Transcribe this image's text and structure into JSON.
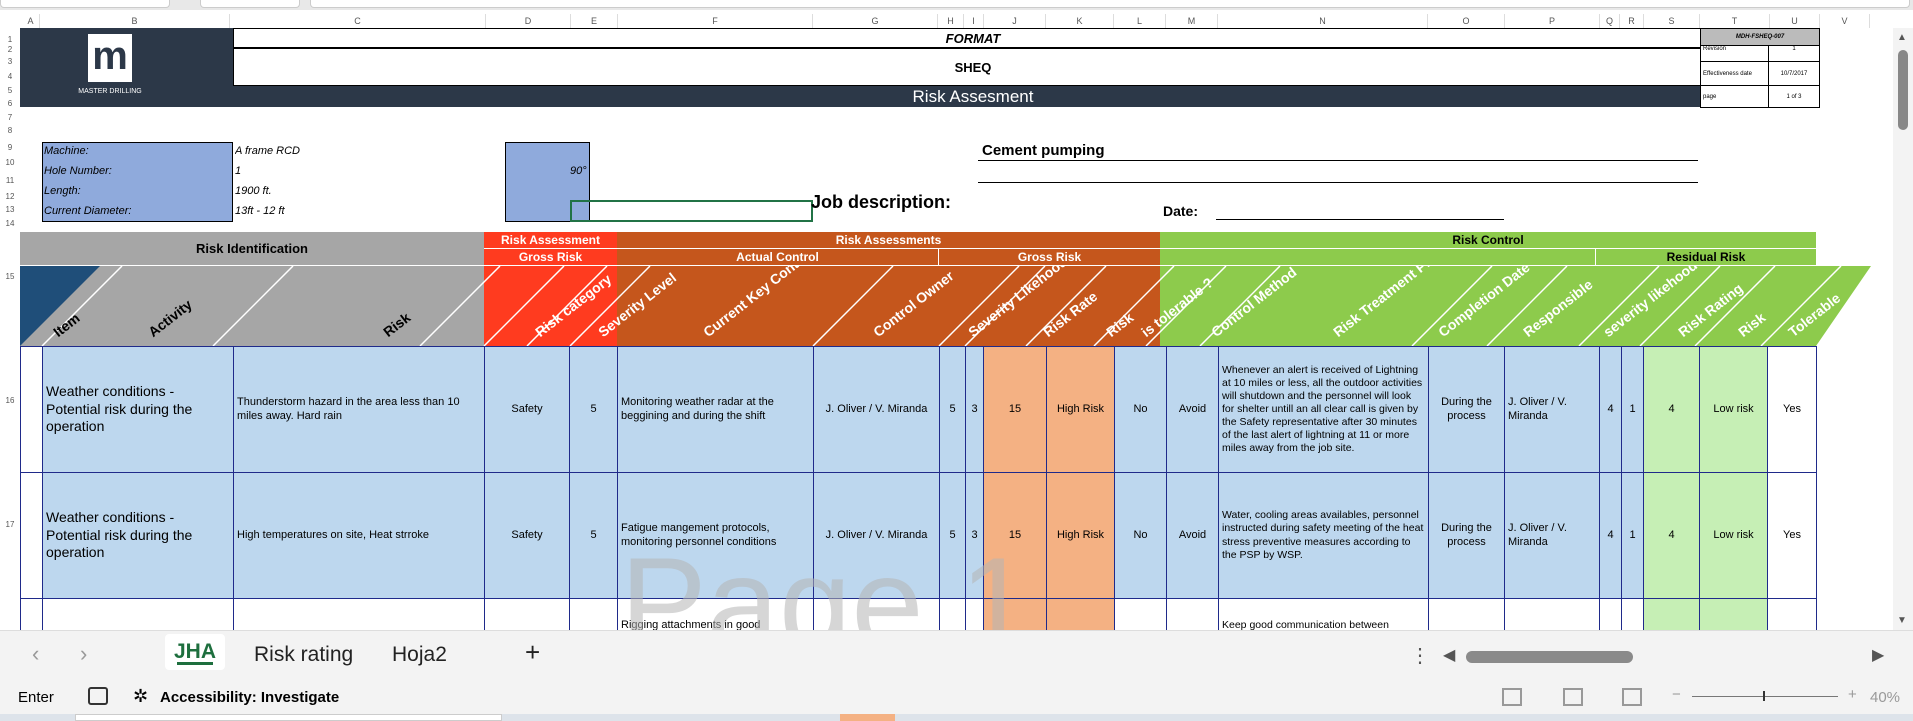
{
  "excel": {
    "columns": [
      "A",
      "B",
      "C",
      "D",
      "E",
      "F",
      "G",
      "H",
      "I",
      "J",
      "K",
      "L",
      "M",
      "N",
      "O",
      "P",
      "Q",
      "R",
      "S",
      "T",
      "U",
      "V"
    ],
    "rows": [
      "1",
      "2",
      "3",
      "4",
      "5",
      "6",
      "7",
      "8",
      "9",
      "10",
      "11",
      "12",
      "13",
      "14",
      "15",
      "16",
      "17"
    ]
  },
  "header": {
    "logo_text": "MASTER DRILLING",
    "format": "FORMAT",
    "sheq": "SHEQ",
    "title": "Risk Assesment",
    "doc_code": "MDH-FSHEQ-007",
    "revision_label": "Revision",
    "revision": "1",
    "effective_label": "Effectiveness date",
    "effective": "10/7/2017",
    "page_label": "page",
    "page": "1 of 3"
  },
  "info": {
    "machine_label": "Machine:",
    "machine": "A frame RCD",
    "hole_label": "Hole Number:",
    "hole": "1",
    "hole_angle": "90°",
    "length_label": "Length:",
    "length": "1900 ft.",
    "diameter_label": "Current Diameter:",
    "diameter": "13ft - 12 ft",
    "job_label": "Job description:",
    "job": "Cement pumping",
    "date_label": "Date:"
  },
  "sections": {
    "risk_id": "Risk Identification",
    "risk_assessment": "Risk Assessment",
    "gross_risk": "Gross Risk",
    "risk_assessments": "Risk Assessments",
    "actual_control": "Actual Control",
    "gross_risk2": "Gross Risk",
    "risk_control": "Risk Control",
    "residual_risk": "Residual Risk"
  },
  "col_headers": [
    "Item",
    "Activity",
    "Risk",
    "Risk category",
    "Severity Level",
    "Current Key Controls",
    "Control Owner",
    "Severity Likehood",
    "Risk Rate",
    "Risk",
    "is tolerable ?",
    "Control Method",
    "Risk Treatment Plan",
    "Completion Date",
    "Responsible",
    "severity likehood",
    "Risk Rating",
    "Risk",
    "Tolerable"
  ],
  "rows": [
    {
      "activity": "Weather conditions - Potential risk during the operation",
      "risk": "Thunderstorm hazard in the area less than 10 miles away. Hard rain",
      "category": "Safety",
      "severity": "5",
      "controls": "Monitoring weather radar at the beggining and during the shift",
      "owner": "J. Oliver / V. Miranda",
      "sev": "5",
      "lik": "3",
      "rate": "15",
      "gross": "High Risk",
      "tolerable": "No",
      "method": "Avoid",
      "plan": "Whenever an alert is received of Lightning at 10 miles or less, all the outdoor activities will shutdown and the personnel will look for shelter untill an all clear call is given by the Safety representative after 30 minutes of the last alert of lightning at 11 or more miles away from the job site.",
      "completion": "During the process",
      "responsible": "J. Oliver / V. Miranda",
      "rsev": "4",
      "rlik": "1",
      "rrate": "4",
      "rrisk": "Low risk",
      "rtol": "Yes"
    },
    {
      "activity": "Weather conditions - Potential risk during the operation",
      "risk": "High temperatures on site, Heat strroke",
      "category": "Safety",
      "severity": "5",
      "controls": "Fatigue mangement protocols, monitoring personnel conditions",
      "owner": "J. Oliver / V. Miranda",
      "sev": "5",
      "lik": "3",
      "rate": "15",
      "gross": "High Risk",
      "tolerable": "No",
      "method": "Avoid",
      "plan": "Water, cooling areas availables, personnel instructed during safety meeting of the heat stress preventive measures according to the PSP by WSP.",
      "completion": "During the process",
      "responsible": "J. Oliver / V. Miranda",
      "rsev": "4",
      "rlik": "1",
      "rrate": "4",
      "rrisk": "Low risk",
      "rtol": "Yes"
    },
    {
      "controls": "Rigging attachments in good",
      "plan": "Keep good communication between"
    }
  ],
  "watermark": "Page 1",
  "tabs": {
    "sheets": [
      "JHA",
      "Risk rating",
      "Hoja2"
    ],
    "active": "JHA",
    "add": "+"
  },
  "status": {
    "mode": "Enter",
    "accessibility": "Accessibility: Investigate",
    "zoom": "40%"
  },
  "colors": {
    "navy": "#2c3848",
    "red": "#ff3b1f",
    "orange": "#c5561c",
    "green": "#8dcb4c",
    "blue": "#bdd7ee",
    "salmon": "#f4b183",
    "lightgreen": "#c6efb5",
    "grey": "#a6a6a6",
    "label_blue": "#8faadc"
  }
}
